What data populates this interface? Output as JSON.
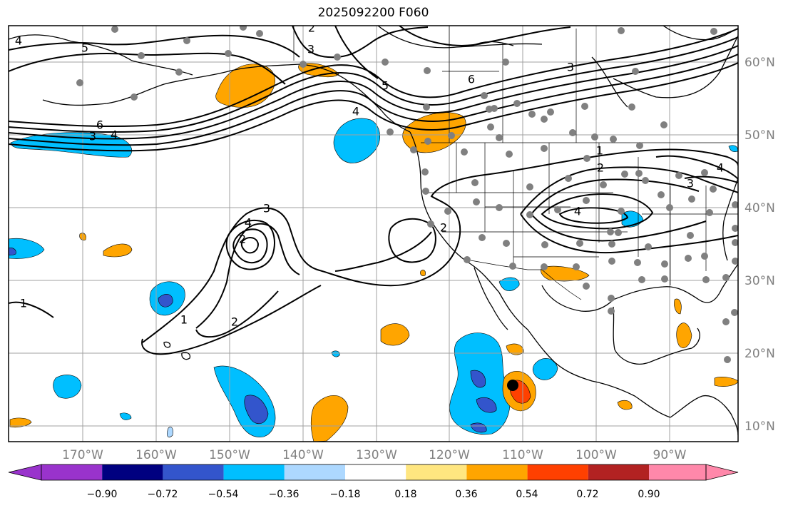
{
  "title": "2025092200 F060",
  "map": {
    "lon_labels": [
      "170°W",
      "160°W",
      "150°W",
      "140°W",
      "130°W",
      "120°W",
      "110°W",
      "100°W",
      "90°W"
    ],
    "lat_labels": [
      "60°N",
      "50°N",
      "40°N",
      "30°N",
      "20°N",
      "10°N"
    ],
    "contour_labels": [
      "5",
      "2",
      "3",
      "6",
      "3",
      "4",
      "4",
      "6",
      "5",
      "1",
      "2",
      "3",
      "4",
      "4",
      "3",
      "4",
      "1",
      "2",
      "2",
      "1",
      "4",
      "3",
      "2"
    ],
    "colors": {
      "purple": "#9933cc",
      "navy": "#000080",
      "royal": "#3355cc",
      "sky": "#00bfff",
      "pale_blue": "#add8ff",
      "white": "#ffffff",
      "yellow": "#ffe680",
      "orange": "#ffa500",
      "red_orange": "#ff4000",
      "firebrick": "#b22222",
      "pink": "#ff88aa",
      "station": "#808080",
      "grid": "#a0a0a0"
    }
  },
  "colorbar": {
    "tick_labels": [
      "−0.90",
      "−0.72",
      "−0.54",
      "−0.36",
      "−0.18",
      "0.18",
      "0.36",
      "0.54",
      "0.72",
      "0.90"
    ],
    "bins": [
      "#000080",
      "#3355cc",
      "#00bfff",
      "#add8ff",
      "#ffffff",
      "#ffffff",
      "#ffe680",
      "#ffa500",
      "#ff4000",
      "#b22222"
    ],
    "under_color": "#9933cc",
    "over_color": "#ff88aa"
  }
}
